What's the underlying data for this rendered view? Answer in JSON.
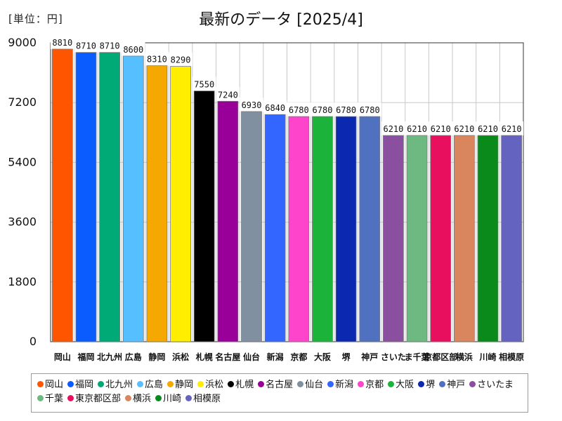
{
  "unit_label": "[単位：円]",
  "chart_data": {
    "type": "bar",
    "title": "最新のデータ [2025/4]",
    "ylim": [
      0,
      9000
    ],
    "yticks": [
      0,
      1800,
      3600,
      5400,
      7200,
      9000
    ],
    "grid": true,
    "legend_position": "bottom",
    "categories": [
      "岡山",
      "福岡",
      "北九州",
      "広島",
      "静岡",
      "浜松",
      "札幌",
      "名古屋",
      "仙台",
      "新潟",
      "京都",
      "大阪",
      "堺",
      "神戸",
      "さいたま",
      "千葉",
      "東京都区部",
      "横浜",
      "川崎",
      "相模原"
    ],
    "tick_labels": [
      "岡山",
      "福岡",
      "北九州",
      "広島",
      "静岡",
      "浜松",
      "札幌",
      "名古屋",
      "仙台",
      "新潟",
      "京都",
      "大阪",
      "堺",
      "神戸",
      "さいた",
      "ま千葉",
      "京都区部",
      "横浜",
      "川崎",
      "相模原"
    ],
    "values": [
      8810,
      8710,
      8710,
      8600,
      8310,
      8290,
      7550,
      7240,
      6930,
      6840,
      6780,
      6780,
      6780,
      6780,
      6210,
      6210,
      6210,
      6210,
      6210,
      6210
    ],
    "colors": [
      "#ff5500",
      "#0a5cff",
      "#00aa77",
      "#55bfff",
      "#f5a800",
      "#ffee00",
      "#000000",
      "#990099",
      "#8090a0",
      "#3366ff",
      "#ff44cc",
      "#1bb33a",
      "#0a28b0",
      "#5070c0",
      "#8a4f9e",
      "#6db981",
      "#e8105e",
      "#d9865f",
      "#0a8a1a",
      "#6464c0"
    ]
  }
}
